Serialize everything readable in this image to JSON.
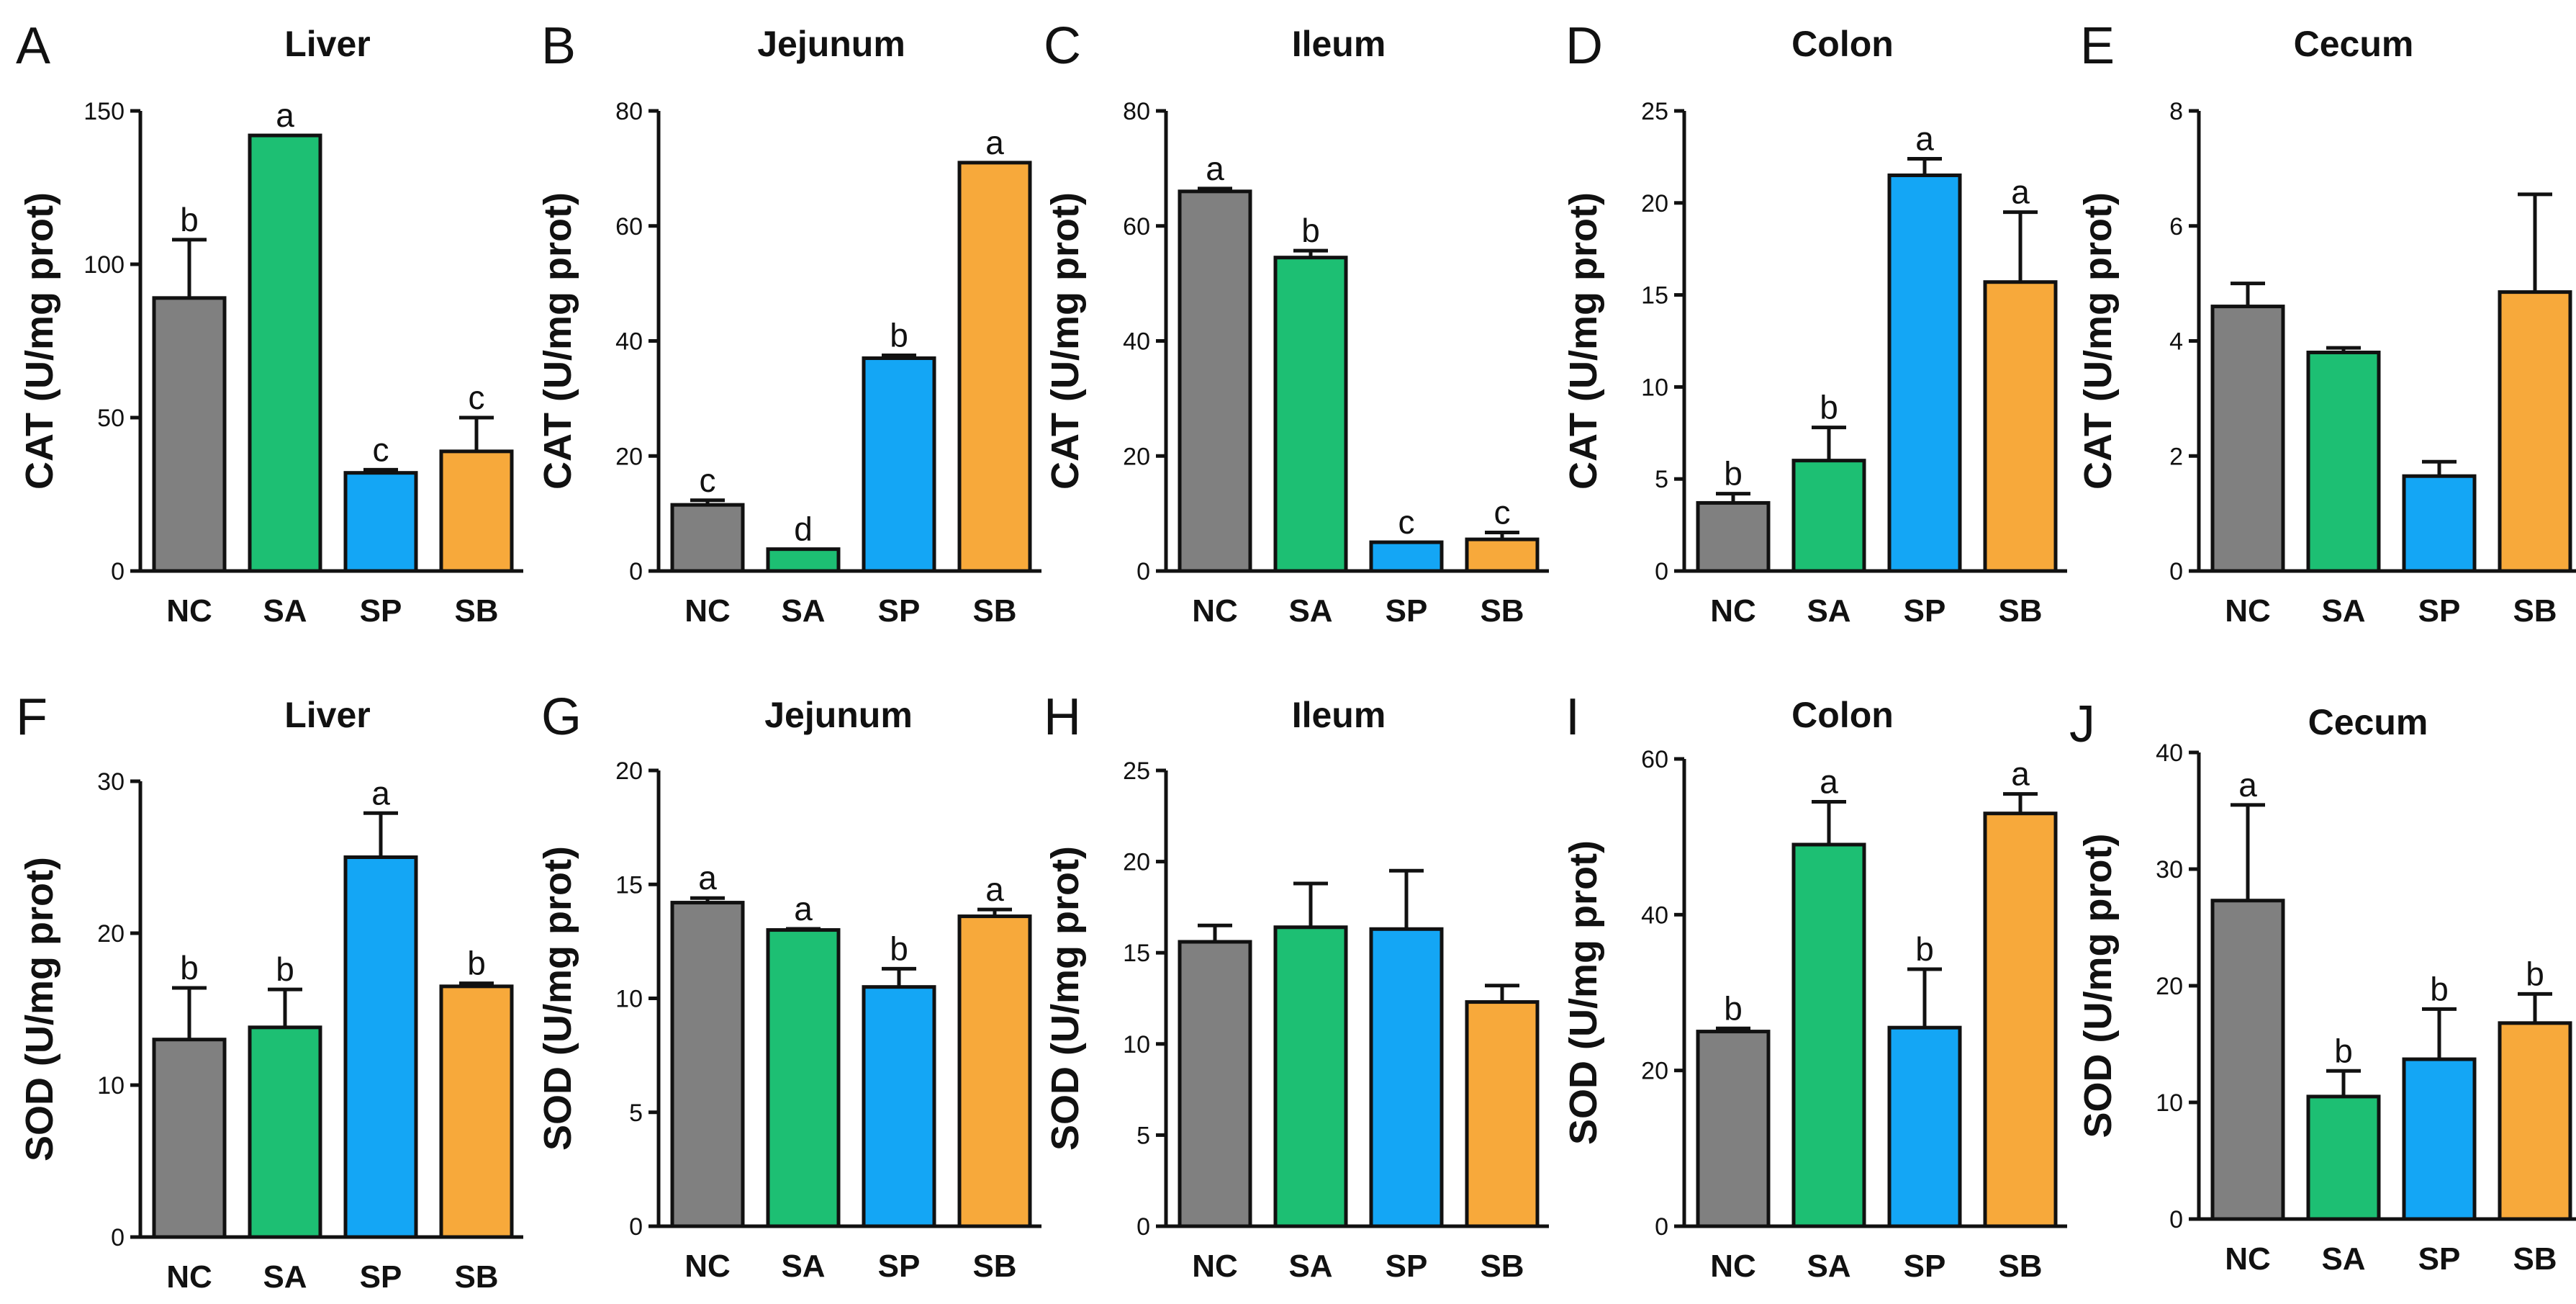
{
  "colors": {
    "NC": "#808080",
    "SA": "#1dbf73",
    "SP": "#14a6f5",
    "SB": "#f7a93b",
    "axis": "#111111"
  },
  "chart_data": [
    {
      "type": "bar",
      "letter": "A",
      "title": "Liver",
      "ylabel": "CAT (U/mg prot)",
      "ylim": [
        0,
        150
      ],
      "yticks": [
        0,
        50,
        100,
        150
      ],
      "categories": [
        "NC",
        "SA",
        "SP",
        "SB"
      ],
      "values": [
        89,
        142,
        32,
        39
      ],
      "errors": [
        19,
        0,
        1,
        11
      ],
      "letters": [
        "b",
        "a",
        "c",
        "c"
      ]
    },
    {
      "type": "bar",
      "letter": "B",
      "title": "Jejunum",
      "ylabel": "CAT (U/mg prot)",
      "ylim": [
        0,
        80
      ],
      "yticks": [
        0,
        20,
        40,
        60,
        80
      ],
      "categories": [
        "NC",
        "SA",
        "SP",
        "SB"
      ],
      "values": [
        11.5,
        3.8,
        37,
        71
      ],
      "errors": [
        0.8,
        0,
        0.5,
        0
      ],
      "letters": [
        "c",
        "d",
        "b",
        "a"
      ]
    },
    {
      "type": "bar",
      "letter": "C",
      "title": "Ileum",
      "ylabel": "CAT (U/mg prot)",
      "ylim": [
        0,
        80
      ],
      "yticks": [
        0,
        20,
        40,
        60,
        80
      ],
      "categories": [
        "NC",
        "SA",
        "SP",
        "SB"
      ],
      "values": [
        66,
        54.5,
        5,
        5.5
      ],
      "errors": [
        0.5,
        1.2,
        0,
        1.2
      ],
      "letters": [
        "a",
        "b",
        "c",
        "c"
      ]
    },
    {
      "type": "bar",
      "letter": "D",
      "title": "Colon",
      "ylabel": "CAT (U/mg prot)",
      "ylim": [
        0,
        25
      ],
      "yticks": [
        0,
        5,
        10,
        15,
        20,
        25
      ],
      "categories": [
        "NC",
        "SA",
        "SP",
        "SB"
      ],
      "values": [
        3.7,
        6,
        21.5,
        15.7
      ],
      "errors": [
        0.5,
        1.8,
        0.9,
        3.8
      ],
      "letters": [
        "b",
        "b",
        "a",
        "a"
      ]
    },
    {
      "type": "bar",
      "letter": "E",
      "title": "Cecum",
      "ylabel": "CAT (U/mg prot)",
      "ylim": [
        0,
        8
      ],
      "yticks": [
        0,
        2,
        4,
        6,
        8
      ],
      "categories": [
        "NC",
        "SA",
        "SP",
        "SB"
      ],
      "values": [
        4.6,
        3.8,
        1.65,
        4.85
      ],
      "errors": [
        0.4,
        0.08,
        0.25,
        1.7
      ],
      "letters": [
        "",
        "",
        "",
        ""
      ]
    },
    {
      "type": "bar",
      "letter": "F",
      "title": "Liver",
      "ylabel": "SOD (U/mg prot)",
      "ylim": [
        0,
        30
      ],
      "yticks": [
        0,
        10,
        20,
        30
      ],
      "categories": [
        "NC",
        "SA",
        "SP",
        "SB"
      ],
      "values": [
        13,
        13.8,
        25,
        16.5
      ],
      "errors": [
        3.4,
        2.5,
        2.9,
        0.2
      ],
      "letters": [
        "b",
        "b",
        "a",
        "b"
      ]
    },
    {
      "type": "bar",
      "letter": "G",
      "title": "Jejunum",
      "ylabel": "SOD (U/mg prot)",
      "ylim": [
        0,
        20
      ],
      "yticks": [
        0,
        5,
        10,
        15,
        20
      ],
      "categories": [
        "NC",
        "SA",
        "SP",
        "SB"
      ],
      "values": [
        14.2,
        13,
        10.5,
        13.6
      ],
      "errors": [
        0.2,
        0.05,
        0.8,
        0.3
      ],
      "letters": [
        "a",
        "a",
        "b",
        "a"
      ]
    },
    {
      "type": "bar",
      "letter": "H",
      "title": "Ileum",
      "ylabel": "SOD (U/mg prot)",
      "ylim": [
        0,
        25
      ],
      "yticks": [
        0,
        5,
        10,
        15,
        20,
        25
      ],
      "categories": [
        "NC",
        "SA",
        "SP",
        "SB"
      ],
      "values": [
        15.6,
        16.4,
        16.3,
        12.3
      ],
      "errors": [
        0.9,
        2.4,
        3.2,
        0.9
      ],
      "letters": [
        "",
        "",
        "",
        ""
      ]
    },
    {
      "type": "bar",
      "letter": "I",
      "title": "Colon",
      "ylabel": "SOD (U/mg prot)",
      "ylim": [
        0,
        60
      ],
      "yticks": [
        0,
        20,
        40,
        60
      ],
      "categories": [
        "NC",
        "SA",
        "SP",
        "SB"
      ],
      "values": [
        25,
        49,
        25.5,
        53
      ],
      "errors": [
        0.4,
        5.5,
        7.5,
        2.5
      ],
      "letters": [
        "b",
        "a",
        "b",
        "a"
      ]
    },
    {
      "type": "bar",
      "letter": "J",
      "title": "Cecum",
      "ylabel": "SOD (U/mg prot)",
      "ylim": [
        0,
        40
      ],
      "yticks": [
        0,
        10,
        20,
        30,
        40
      ],
      "categories": [
        "NC",
        "SA",
        "SP",
        "SB"
      ],
      "values": [
        27.3,
        10.5,
        13.7,
        16.8
      ],
      "errors": [
        8.2,
        2.2,
        4.3,
        2.5
      ],
      "letters": [
        "a",
        "b",
        "b",
        "b"
      ]
    }
  ]
}
